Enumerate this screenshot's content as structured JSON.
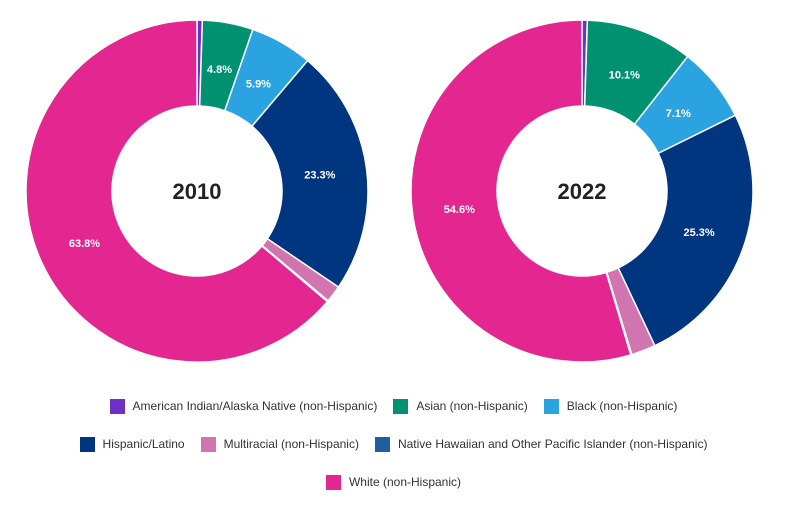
{
  "chart_data": [
    {
      "type": "pie",
      "title": "2010",
      "categories": [
        "American Indian/Alaska Native (non-Hispanic)",
        "Asian (non-Hispanic)",
        "Black (non-Hispanic)",
        "Hispanic/Latino",
        "Multiracial (non-Hispanic)",
        "Native Hawaiian and Other Pacific Islander (non-Hispanic)",
        "White (non-Hispanic)"
      ],
      "values": [
        0.5,
        4.8,
        5.9,
        23.3,
        1.6,
        0.1,
        63.8
      ],
      "labels": [
        "",
        "4.8%",
        "5.9%",
        "23.3%",
        "",
        "",
        "63.8%"
      ]
    },
    {
      "type": "pie",
      "title": "2022",
      "categories": [
        "American Indian/Alaska Native (non-Hispanic)",
        "Asian (non-Hispanic)",
        "Black (non-Hispanic)",
        "Hispanic/Latino",
        "Multiracial (non-Hispanic)",
        "Native Hawaiian and Other Pacific Islander (non-Hispanic)",
        "White (non-Hispanic)"
      ],
      "values": [
        0.5,
        10.1,
        7.1,
        25.3,
        2.3,
        0.1,
        54.6
      ],
      "labels": [
        "",
        "10.1%",
        "7.1%",
        "25.3%",
        "",
        "",
        "54.6%"
      ]
    }
  ],
  "colors": [
    "#7030c8",
    "#009270",
    "#2ba3e0",
    "#003580",
    "#d175b0",
    "#1f5f9e",
    "#e32690"
  ],
  "legend": {
    "rows": [
      [
        {
          "label": "American Indian/Alaska Native (non-Hispanic)",
          "color": "#7030c8"
        },
        {
          "label": "Asian (non-Hispanic)",
          "color": "#009270"
        },
        {
          "label": "Black (non-Hispanic)",
          "color": "#2ba3e0"
        }
      ],
      [
        {
          "label": "Hispanic/Latino",
          "color": "#003580"
        },
        {
          "label": "Multiracial (non-Hispanic)",
          "color": "#d175b0"
        },
        {
          "label": "Native Hawaiian and Other Pacific Islander (non-Hispanic)",
          "color": "#1f5f9e"
        }
      ],
      [
        {
          "label": "White (non-Hispanic)",
          "color": "#e32690"
        }
      ]
    ]
  }
}
